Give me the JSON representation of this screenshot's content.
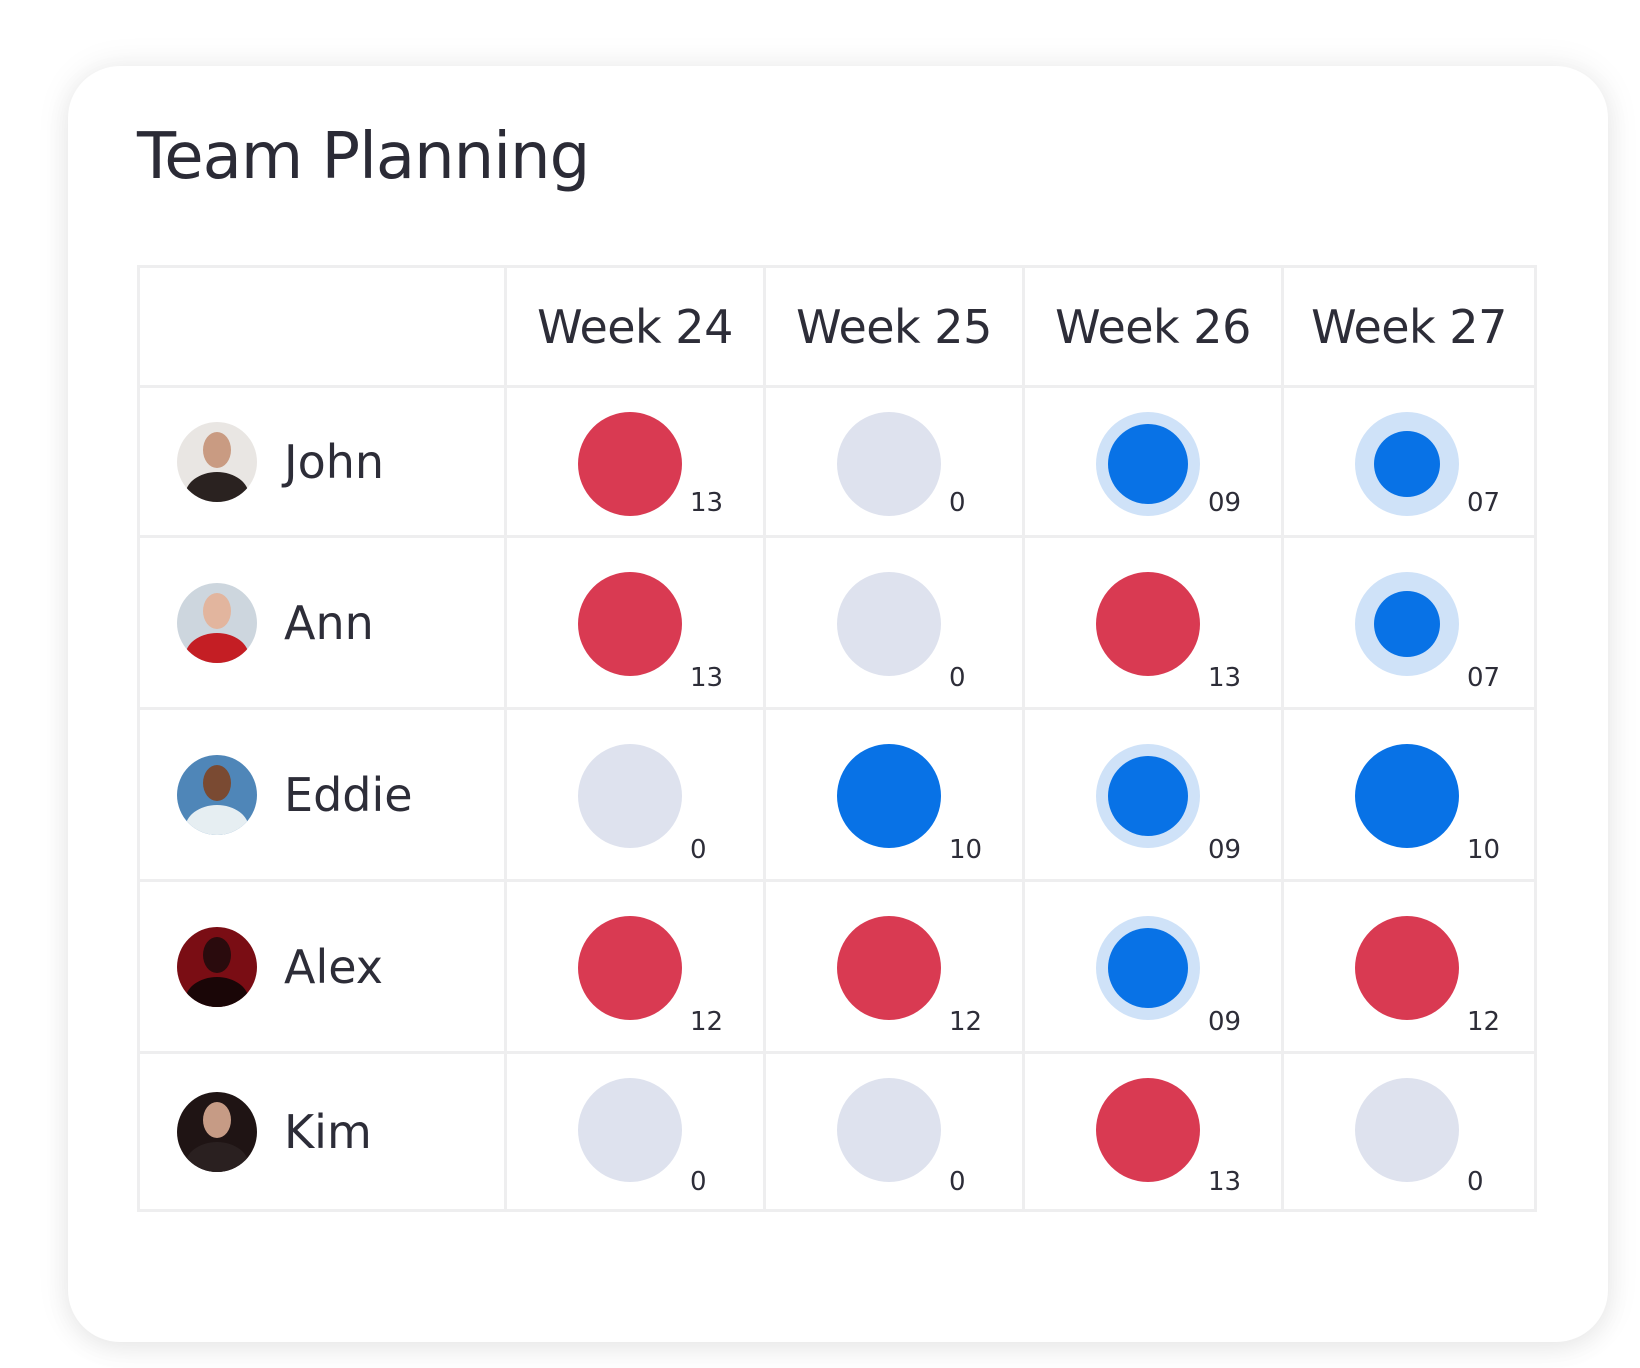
{
  "title": "Team Planning",
  "colors": {
    "over": "#d93a52",
    "full": "#0872e6",
    "partial": "#0872e6",
    "partial_ring": "#cfe2f8",
    "empty": "#dee2ee"
  },
  "weeks": [
    "Week 24",
    "Week 25",
    "Week 26",
    "Week 27"
  ],
  "people": [
    {
      "name": "John",
      "avatar_icon": "person-avatar-icon",
      "cells": [
        {
          "value": "13",
          "status": "over"
        },
        {
          "value": "0",
          "status": "empty"
        },
        {
          "value": "09",
          "status": "partial"
        },
        {
          "value": "07",
          "status": "partial-low"
        }
      ]
    },
    {
      "name": "Ann",
      "avatar_icon": "person-avatar-icon",
      "cells": [
        {
          "value": "13",
          "status": "over"
        },
        {
          "value": "0",
          "status": "empty"
        },
        {
          "value": "13",
          "status": "over"
        },
        {
          "value": "07",
          "status": "partial-low"
        }
      ]
    },
    {
      "name": "Eddie",
      "avatar_icon": "person-avatar-icon",
      "cells": [
        {
          "value": "0",
          "status": "empty"
        },
        {
          "value": "10",
          "status": "full"
        },
        {
          "value": "09",
          "status": "partial"
        },
        {
          "value": "10",
          "status": "full"
        }
      ]
    },
    {
      "name": "Alex",
      "avatar_icon": "person-avatar-icon",
      "cells": [
        {
          "value": "12",
          "status": "over"
        },
        {
          "value": "12",
          "status": "over"
        },
        {
          "value": "09",
          "status": "partial"
        },
        {
          "value": "12",
          "status": "over"
        }
      ]
    },
    {
      "name": "Kim",
      "avatar_icon": "person-avatar-icon",
      "cells": [
        {
          "value": "0",
          "status": "empty"
        },
        {
          "value": "0",
          "status": "empty"
        },
        {
          "value": "13",
          "status": "over"
        },
        {
          "value": "0",
          "status": "empty"
        }
      ]
    }
  ]
}
